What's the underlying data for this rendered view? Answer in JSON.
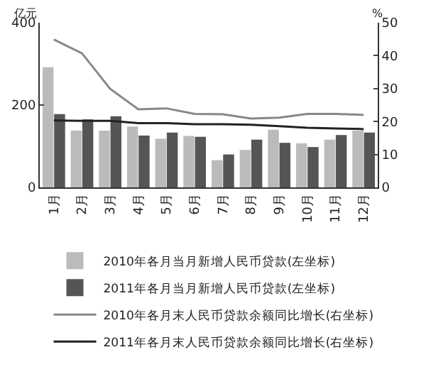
{
  "chart_data": {
    "type": "bar",
    "ylabel": "亿元",
    "y2label": "%",
    "categories": [
      "1月",
      "2月",
      "3月",
      "4月",
      "5月",
      "6月",
      "7月",
      "8月",
      "9月",
      "10月",
      "11月",
      "12月"
    ],
    "series": [
      {
        "name": "2010年各月当月新增人民币贷款(左坐标)",
        "color": "#bbbbbb",
        "values": [
          292,
          138,
          138,
          148,
          118,
          125,
          66,
          91,
          140,
          107,
          116,
          138
        ]
      },
      {
        "name": "2011年各月当月新增人民币贷款(左坐标)",
        "color": "#555555",
        "values": [
          178,
          165,
          173,
          126,
          133,
          123,
          80,
          116,
          108,
          98,
          127,
          133
        ]
      },
      {
        "name": "2010年各月末人民币贷款余额同比增长(右坐标)",
        "type": "line",
        "axis": "y2",
        "color": "#888888",
        "values": [
          44.9,
          40.7,
          29.9,
          23.7,
          24,
          22.3,
          22.2,
          20.9,
          21.2,
          22.3,
          22.3,
          22
        ]
      },
      {
        "name": "2011年各月末人民币贷款余额同比增长(右坐标)",
        "type": "line",
        "axis": "y2",
        "color": "#222222",
        "values": [
          20.3,
          20.2,
          20.2,
          19.5,
          19.5,
          19.2,
          19.2,
          19,
          18.6,
          18.1,
          17.9,
          17.7
        ]
      }
    ],
    "ylim": [
      0,
      400
    ],
    "yticks": [
      0,
      200,
      400
    ],
    "y2lim": [
      0,
      50
    ],
    "y2ticks": [
      0,
      10,
      20,
      30,
      40,
      50
    ],
    "grid": false,
    "legend": "bottom",
    "marker": "none"
  }
}
